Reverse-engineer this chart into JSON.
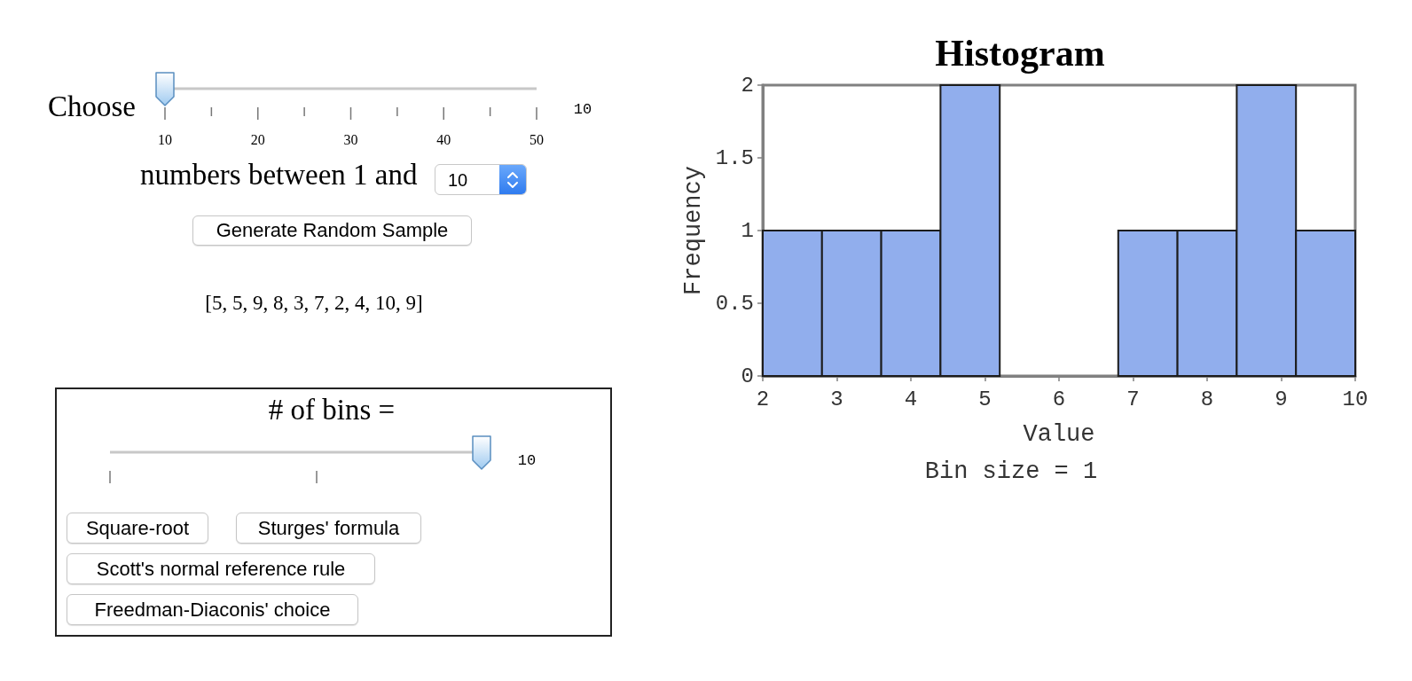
{
  "chart_data": {
    "type": "histogram",
    "title": "Histogram",
    "xlabel": "Value",
    "ylabel": "Frequency",
    "bins": [
      2,
      2.8,
      3.6,
      4.4,
      5.2,
      6,
      6.8,
      7.6,
      8.4,
      9.2,
      10
    ],
    "values": [
      1,
      1,
      1,
      2,
      0,
      0,
      1,
      1,
      2,
      1
    ],
    "color": "#91aeed",
    "xlim": [
      2,
      10
    ],
    "xticks": [
      2,
      3,
      4,
      5,
      6,
      7,
      8,
      9,
      10
    ],
    "ylim": [
      0,
      2
    ],
    "yticks": [
      0,
      0.5,
      1,
      1.5,
      2
    ],
    "grid": false,
    "annotations": [
      "Bin size = 1",
      "Choose",
      "10",
      "20",
      "30",
      "40",
      "50",
      "10",
      "numbers between 1 and",
      "10",
      "Generate Random Sample",
      "[5, 5, 9, 8, 3, 7, 2, 4, 10, 9]",
      "# of bins =",
      "10",
      "Square-root",
      "Sturges' formula",
      "Scott's normal reference rule",
      "Freedman-Diaconis' choice"
    ]
  }
}
